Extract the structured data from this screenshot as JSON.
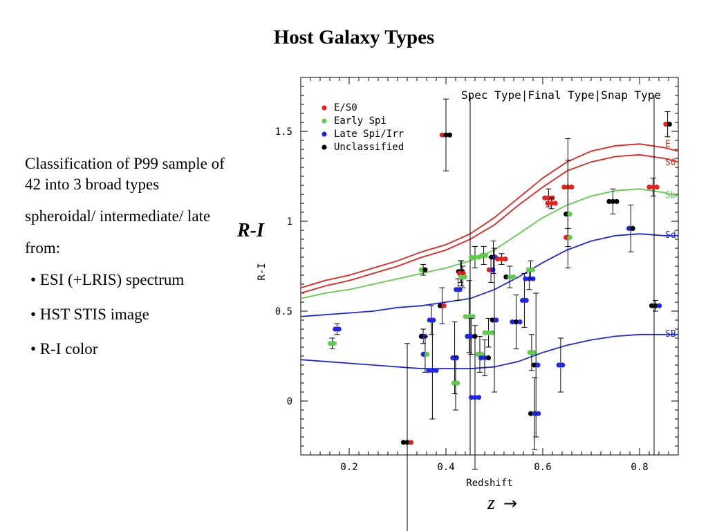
{
  "slide": {
    "title": "Host Galaxy Types",
    "paragraphs": [
      "Classification of P99 sample of 42 into 3 broad types",
      "spheroidal/ intermediate/ late",
      "from:"
    ],
    "bullets": [
      "• ESI (+LRIS) spectrum",
      "• HST STIS image",
      "• R-I color"
    ],
    "big_ylabel": "R-I",
    "z_label": "z",
    "z_arrow": "→"
  },
  "chart_data": {
    "type": "scatter",
    "title": "",
    "header": "Spec Type|Final Type|Snap Type",
    "xlabel": "Redshift",
    "ylabel": "R-I",
    "xlim": [
      0.1,
      0.88
    ],
    "ylim": [
      -0.3,
      1.8
    ],
    "xticks": [
      0.2,
      0.4,
      0.6,
      0.8
    ],
    "xtick_labels": [
      "0.2",
      "0.4",
      "0.6",
      "0.8"
    ],
    "yticks": [
      0,
      0.5,
      1,
      1.5
    ],
    "ytick_labels": [
      "0",
      "0.5",
      "1",
      "1.5"
    ],
    "grid": false,
    "legend_position": "top-left",
    "colors": {
      "E/S0": "#e8211b",
      "Early Spi": "#5fcc4c",
      "Late Spi/Irr": "#1f27e6",
      "Unclassified": "#000000"
    },
    "legend": [
      "E/S0",
      "Early Spi",
      "Late Spi/Irr",
      "Unclassified"
    ],
    "vertical_lines": [
      0.45,
      0.83
    ],
    "templates": [
      {
        "name": "E",
        "color": "#e8211b",
        "points": [
          [
            0.1,
            0.63
          ],
          [
            0.15,
            0.67
          ],
          [
            0.2,
            0.7
          ],
          [
            0.25,
            0.74
          ],
          [
            0.3,
            0.78
          ],
          [
            0.35,
            0.83
          ],
          [
            0.4,
            0.87
          ],
          [
            0.45,
            0.93
          ],
          [
            0.5,
            1.02
          ],
          [
            0.55,
            1.13
          ],
          [
            0.6,
            1.24
          ],
          [
            0.65,
            1.33
          ],
          [
            0.7,
            1.39
          ],
          [
            0.75,
            1.42
          ],
          [
            0.8,
            1.43
          ],
          [
            0.85,
            1.41
          ],
          [
            0.88,
            1.39
          ]
        ]
      },
      {
        "name": "S0",
        "color": "#e8211b",
        "points": [
          [
            0.1,
            0.6
          ],
          [
            0.15,
            0.64
          ],
          [
            0.2,
            0.67
          ],
          [
            0.25,
            0.71
          ],
          [
            0.3,
            0.75
          ],
          [
            0.35,
            0.8
          ],
          [
            0.4,
            0.84
          ],
          [
            0.45,
            0.9
          ],
          [
            0.5,
            0.98
          ],
          [
            0.55,
            1.09
          ],
          [
            0.6,
            1.19
          ],
          [
            0.65,
            1.28
          ],
          [
            0.7,
            1.33
          ],
          [
            0.75,
            1.36
          ],
          [
            0.8,
            1.37
          ],
          [
            0.85,
            1.35
          ],
          [
            0.88,
            1.33
          ]
        ]
      },
      {
        "name": "Sb",
        "color": "#5fcc4c",
        "points": [
          [
            0.1,
            0.57
          ],
          [
            0.15,
            0.6
          ],
          [
            0.2,
            0.62
          ],
          [
            0.25,
            0.65
          ],
          [
            0.3,
            0.68
          ],
          [
            0.35,
            0.71
          ],
          [
            0.4,
            0.74
          ],
          [
            0.45,
            0.78
          ],
          [
            0.5,
            0.84
          ],
          [
            0.55,
            0.93
          ],
          [
            0.6,
            1.02
          ],
          [
            0.65,
            1.09
          ],
          [
            0.7,
            1.14
          ],
          [
            0.75,
            1.17
          ],
          [
            0.8,
            1.18
          ],
          [
            0.85,
            1.16
          ],
          [
            0.88,
            1.14
          ]
        ]
      },
      {
        "name": "Sd",
        "color": "#1f27e6",
        "points": [
          [
            0.1,
            0.47
          ],
          [
            0.15,
            0.48
          ],
          [
            0.2,
            0.49
          ],
          [
            0.25,
            0.5
          ],
          [
            0.3,
            0.52
          ],
          [
            0.35,
            0.53
          ],
          [
            0.4,
            0.55
          ],
          [
            0.45,
            0.57
          ],
          [
            0.5,
            0.62
          ],
          [
            0.55,
            0.69
          ],
          [
            0.6,
            0.77
          ],
          [
            0.65,
            0.84
          ],
          [
            0.7,
            0.89
          ],
          [
            0.75,
            0.92
          ],
          [
            0.8,
            0.93
          ],
          [
            0.85,
            0.92
          ],
          [
            0.88,
            0.92
          ]
        ]
      },
      {
        "name": "SB",
        "color": "#1f27e6",
        "points": [
          [
            0.1,
            0.23
          ],
          [
            0.15,
            0.22
          ],
          [
            0.2,
            0.21
          ],
          [
            0.25,
            0.2
          ],
          [
            0.3,
            0.19
          ],
          [
            0.35,
            0.18
          ],
          [
            0.4,
            0.18
          ],
          [
            0.45,
            0.18
          ],
          [
            0.5,
            0.19
          ],
          [
            0.55,
            0.22
          ],
          [
            0.6,
            0.27
          ],
          [
            0.65,
            0.31
          ],
          [
            0.7,
            0.34
          ],
          [
            0.75,
            0.36
          ],
          [
            0.8,
            0.37
          ],
          [
            0.85,
            0.37
          ],
          [
            0.88,
            0.37
          ]
        ]
      }
    ],
    "points": [
      {
        "z": 0.165,
        "ri": 0.32,
        "err": 0.03,
        "c": [
          "g",
          "g"
        ]
      },
      {
        "z": 0.175,
        "ri": 0.4,
        "err": 0.03,
        "c": [
          "b",
          "b"
        ]
      },
      {
        "z": 0.32,
        "ri": -0.23,
        "err": 0.55,
        "c": [
          "k",
          "k",
          "r"
        ]
      },
      {
        "z": 0.353,
        "ri": 0.73,
        "err": 0.03,
        "c": [
          "g",
          "k"
        ]
      },
      {
        "z": 0.353,
        "ri": 0.36,
        "err": 0.04,
        "c": [
          "k",
          "b"
        ]
      },
      {
        "z": 0.357,
        "ri": 0.26,
        "err": 0.1,
        "c": [
          "b",
          "g"
        ]
      },
      {
        "z": 0.372,
        "ri": 0.17,
        "err": 0.27,
        "c": [
          "b",
          "b",
          "b"
        ]
      },
      {
        "z": 0.37,
        "ri": 0.45,
        "err": 0.08,
        "c": [
          "b",
          "b"
        ]
      },
      {
        "z": 0.392,
        "ri": 0.53,
        "err": 0.1,
        "c": [
          "k",
          "r"
        ]
      },
      {
        "z": 0.4,
        "ri": 1.48,
        "err": 0.2,
        "c": [
          "r",
          "k",
          "k"
        ]
      },
      {
        "z": 0.418,
        "ri": 0.24,
        "err": 0.2,
        "c": [
          "b",
          "b"
        ]
      },
      {
        "z": 0.42,
        "ri": 0.1,
        "err": 0.15,
        "c": [
          "g",
          "g"
        ]
      },
      {
        "z": 0.425,
        "ri": 0.62,
        "err": 0.06,
        "c": [
          "b",
          "b"
        ]
      },
      {
        "z": 0.43,
        "ri": 0.72,
        "err": 0.06,
        "c": [
          "k",
          "k"
        ]
      },
      {
        "z": 0.432,
        "ri": 0.71,
        "err": 0.07,
        "c": [
          "r",
          "r"
        ]
      },
      {
        "z": 0.435,
        "ri": 0.69,
        "err": 0.06,
        "c": [
          "g",
          "g"
        ]
      },
      {
        "z": 0.448,
        "ri": 0.47,
        "err": 0.2,
        "c": [
          "g",
          "g",
          "g"
        ]
      },
      {
        "z": 0.452,
        "ri": 0.36,
        "err": 0.1,
        "c": [
          "b",
          "b",
          "k"
        ]
      },
      {
        "z": 0.46,
        "ri": 0.02,
        "err": 0.4,
        "c": [
          "b",
          "b",
          "b"
        ]
      },
      {
        "z": 0.46,
        "ri": 0.8,
        "err": 0.06,
        "c": [
          "g",
          "g",
          "g"
        ]
      },
      {
        "z": 0.47,
        "ri": 0.26,
        "err": 0.1,
        "c": [
          "g",
          "g"
        ]
      },
      {
        "z": 0.478,
        "ri": 0.81,
        "err": 0.05,
        "c": [
          "g",
          "g"
        ]
      },
      {
        "z": 0.48,
        "ri": 0.24,
        "err": 0.1,
        "c": [
          "b",
          "b",
          "k"
        ]
      },
      {
        "z": 0.488,
        "ri": 0.38,
        "err": 0.08,
        "c": [
          "g",
          "g",
          "g"
        ]
      },
      {
        "z": 0.493,
        "ri": 0.73,
        "err": 0.07,
        "c": [
          "r",
          "b"
        ]
      },
      {
        "z": 0.498,
        "ri": 0.8,
        "err": 0.09,
        "c": [
          "k",
          "b"
        ]
      },
      {
        "z": 0.5,
        "ri": 0.45,
        "err": 0.4,
        "c": [
          "k",
          "b"
        ]
      },
      {
        "z": 0.515,
        "ri": 0.79,
        "err": 0.03,
        "c": [
          "r",
          "r",
          "r"
        ]
      },
      {
        "z": 0.532,
        "ri": 0.69,
        "err": 0.06,
        "c": [
          "k",
          "g",
          "g"
        ]
      },
      {
        "z": 0.545,
        "ri": 0.44,
        "err": 0.15,
        "c": [
          "b",
          "k",
          "b"
        ]
      },
      {
        "z": 0.562,
        "ri": 0.56,
        "err": 0.15,
        "c": [
          "b",
          "b"
        ]
      },
      {
        "z": 0.572,
        "ri": 0.68,
        "err": 0.06,
        "c": [
          "b",
          "b",
          "b"
        ]
      },
      {
        "z": 0.575,
        "ri": 0.73,
        "err": 0.05,
        "c": [
          "g",
          "g"
        ]
      },
      {
        "z": 0.577,
        "ri": 0.27,
        "err": 0.1,
        "c": [
          "g",
          "g"
        ]
      },
      {
        "z": 0.583,
        "ri": -0.07,
        "err": 0.2,
        "c": [
          "k",
          "b",
          "b"
        ]
      },
      {
        "z": 0.586,
        "ri": 0.2,
        "err": 0.4,
        "c": [
          "k",
          "b"
        ]
      },
      {
        "z": 0.612,
        "ri": 1.13,
        "err": 0.05,
        "c": [
          "r",
          "r",
          "r"
        ]
      },
      {
        "z": 0.618,
        "ri": 1.1,
        "err": 0.03,
        "c": [
          "r",
          "r",
          "r"
        ]
      },
      {
        "z": 0.637,
        "ri": 0.2,
        "err": 0.15,
        "c": [
          "b",
          "b"
        ]
      },
      {
        "z": 0.652,
        "ri": 1.19,
        "err": 0.27,
        "c": [
          "r",
          "r",
          "r"
        ]
      },
      {
        "z": 0.652,
        "ri": 1.04,
        "err": 0.3,
        "c": [
          "k",
          "g"
        ]
      },
      {
        "z": 0.652,
        "ri": 0.91,
        "err": 0.05,
        "c": [
          "r",
          "g"
        ]
      },
      {
        "z": 0.745,
        "ri": 1.11,
        "err": 0.07,
        "c": [
          "k",
          "k",
          "k"
        ]
      },
      {
        "z": 0.782,
        "ri": 0.96,
        "err": 0.13,
        "c": [
          "b",
          "k"
        ]
      },
      {
        "z": 0.828,
        "ri": 1.19,
        "err": 0.05,
        "c": [
          "r",
          "r",
          "r"
        ]
      },
      {
        "z": 0.833,
        "ri": 0.53,
        "err": 0.03,
        "c": [
          "k",
          "k",
          "b"
        ]
      },
      {
        "z": 0.858,
        "ri": 1.54,
        "err": 0.07,
        "c": [
          "r",
          "k"
        ]
      }
    ]
  }
}
